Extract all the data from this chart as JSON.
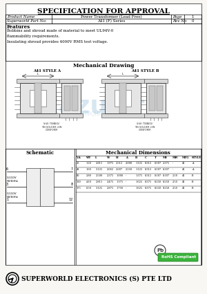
{
  "title": "SPECIFICATION FOR APPROVAL",
  "product_name_label": "Product Name",
  "product_name_value": "Power Transformer (Lead Free)",
  "page_label": "Page",
  "page_value": "1",
  "part_label": "Superworld Part No:",
  "part_value": "A41 (F) Series",
  "rev_label": "Rev No",
  "rev_value": "0",
  "features_title": "Features",
  "features_text": "Bobbins and shroud made of material to meet UL94V-0\nflammability requirements.\nInsulating shroud provides 4000V RMS test voltage.",
  "mech_drawing_title": "Mechanical Drawing",
  "style_a_label": "A41 STYLE A",
  "style_b_label": "A41 STYLE B",
  "schematic_title": "Schematic",
  "mech_dim_title": "Mechanical Dimensions",
  "table_headers": [
    "V.A",
    "WT",
    "L",
    "W",
    "H",
    "A",
    "B",
    "C",
    "T",
    "ME",
    "MW",
    "MTG",
    "STYLE"
  ],
  "table_rows": [
    [
      "25",
      "1.20",
      "2.811",
      "1.975",
      "2.512",
      "2.000",
      "1.125",
      "0.312",
      "0.187",
      "2.375",
      "-",
      "46",
      "A"
    ],
    [
      "43",
      "1.60",
      "3.125",
      "2.062",
      "2.687",
      "2.250",
      "1.125",
      "0.312",
      "0.187",
      "0.187",
      "-",
      "46",
      "A"
    ],
    [
      "80",
      "2.80",
      "2.500",
      "2.375",
      "1.000",
      "-",
      "1.375",
      "0.312",
      "0.187",
      "0.187",
      "2.18",
      "46",
      "B"
    ],
    [
      "130",
      "4.10",
      "2.811",
      "2.475",
      "1.375",
      "-",
      "1.625",
      "0.375",
      "0.250",
      "0.250",
      "2.50",
      "46",
      "B"
    ],
    [
      "175",
      "6.50",
      "3.125",
      "2.875",
      "1.750",
      "-",
      "1.625",
      "0.375",
      "0.250",
      "0.250",
      "2.50",
      "46",
      "B"
    ]
  ],
  "footer_company": "SUPERWORLD ELECTRONICS (S) PTE LTD",
  "watermark_text": "kazus.ru",
  "watermark_sub": "ЭЛЕКТРОННЫЙ ПОРТАЛ",
  "rohs_text": "RoHS Compliant",
  "page_bg": "#f8f7f4",
  "content_bg": "white",
  "footer_bg": "#f0eeea"
}
